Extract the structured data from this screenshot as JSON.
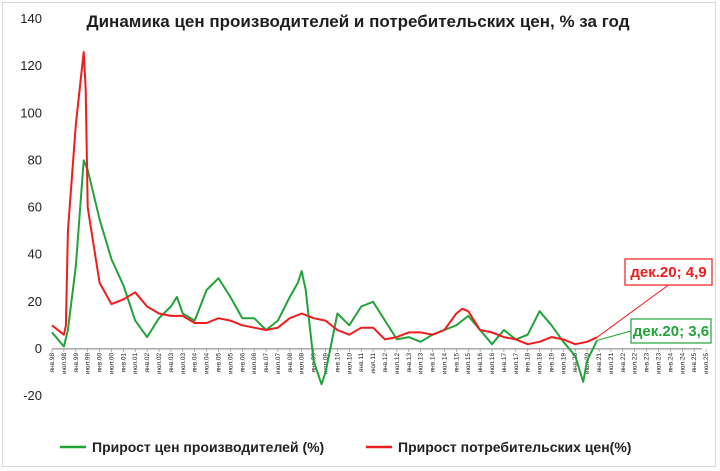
{
  "chart_data": {
    "type": "line",
    "title": "Динамика цен производителей и потребительских цен, % за год",
    "xlabel": "",
    "ylabel": "",
    "ylim": [
      -20,
      140
    ],
    "yticks": [
      -20,
      0,
      20,
      40,
      60,
      80,
      100,
      120,
      140
    ],
    "grid": false,
    "legend_position": "bottom",
    "x_tick_labels": [
      "янв.98",
      "июл.98",
      "янв.99",
      "июл.99",
      "янв.00",
      "июл.00",
      "янв.01",
      "июл.01",
      "янв.02",
      "июл.02",
      "янв.03",
      "июл.03",
      "янв.04",
      "июл.04",
      "янв.05",
      "июл.05",
      "янв.06",
      "июл.06",
      "янв.07",
      "июл.07",
      "янв.08",
      "июл.08",
      "янв.09",
      "июл.09",
      "янв.10",
      "июл.10",
      "янв.11",
      "июл.11",
      "янв.12",
      "июл.12",
      "янв.13",
      "июл.13",
      "янв.14",
      "июл.14",
      "янв.15",
      "июл.15",
      "янв.16",
      "июл.16",
      "янв.17",
      "июл.17",
      "янв.18",
      "июл.18",
      "янв.19",
      "июл.19",
      "янв.20",
      "июл.20",
      "янв.21",
      "июл.21",
      "янв.22",
      "июл.22",
      "янв.23",
      "июл.23",
      "янв.24",
      "июл.24",
      "янв.25",
      "июл.25"
    ],
    "series": [
      {
        "name": "Прирост цен производителей (%)",
        "color": "#22a33a",
        "points": [
          [
            "янв.98",
            7
          ],
          [
            "июл.98",
            1
          ],
          [
            "сен.98",
            8
          ],
          [
            "янв.99",
            35
          ],
          [
            "май.99",
            80
          ],
          [
            "июл.99",
            76
          ],
          [
            "янв.00",
            55
          ],
          [
            "июл.00",
            38
          ],
          [
            "янв.01",
            27
          ],
          [
            "июл.01",
            12
          ],
          [
            "янв.02",
            5
          ],
          [
            "июл.02",
            13
          ],
          [
            "янв.03",
            18
          ],
          [
            "апр.03",
            22
          ],
          [
            "июл.03",
            15
          ],
          [
            "янв.04",
            12
          ],
          [
            "июл.04",
            25
          ],
          [
            "янв.05",
            30
          ],
          [
            "июл.05",
            22
          ],
          [
            "янв.06",
            13
          ],
          [
            "июл.06",
            13
          ],
          [
            "янв.07",
            8
          ],
          [
            "июл.07",
            12
          ],
          [
            "янв.08",
            22
          ],
          [
            "май.08",
            28
          ],
          [
            "июл.08",
            33
          ],
          [
            "сен.08",
            25
          ],
          [
            "янв.09",
            -5
          ],
          [
            "май.09",
            -15
          ],
          [
            "июл.09",
            -10
          ],
          [
            "янв.10",
            15
          ],
          [
            "июл.10",
            10
          ],
          [
            "янв.11",
            18
          ],
          [
            "июл.11",
            20
          ],
          [
            "янв.12",
            12
          ],
          [
            "июл.12",
            4
          ],
          [
            "янв.13",
            5
          ],
          [
            "июл.13",
            3
          ],
          [
            "янв.14",
            6
          ],
          [
            "июл.14",
            8
          ],
          [
            "янв.15",
            10
          ],
          [
            "июл.15",
            14
          ],
          [
            "янв.16",
            8
          ],
          [
            "июл.16",
            2
          ],
          [
            "янв.17",
            8
          ],
          [
            "июл.17",
            4
          ],
          [
            "янв.18",
            6
          ],
          [
            "июл.18",
            16
          ],
          [
            "янв.19",
            10
          ],
          [
            "июл.19",
            3
          ],
          [
            "янв.20",
            -3
          ],
          [
            "май.20",
            -14
          ],
          [
            "июл.20",
            -5
          ],
          [
            "дек.20",
            3.6
          ]
        ]
      },
      {
        "name": "Прирост потребительских цен(%)",
        "color": "#ee1c1c",
        "points": [
          [
            "янв.98",
            10
          ],
          [
            "июл.98",
            6
          ],
          [
            "авг.98",
            10
          ],
          [
            "сен.98",
            50
          ],
          [
            "янв.99",
            95
          ],
          [
            "май.99",
            126
          ],
          [
            "июн.99",
            110
          ],
          [
            "июл.99",
            60
          ],
          [
            "янв.00",
            28
          ],
          [
            "июл.00",
            19
          ],
          [
            "янв.01",
            21
          ],
          [
            "июл.01",
            24
          ],
          [
            "янв.02",
            18
          ],
          [
            "июл.02",
            15
          ],
          [
            "янв.03",
            14
          ],
          [
            "июл.03",
            14
          ],
          [
            "янв.04",
            11
          ],
          [
            "июл.04",
            11
          ],
          [
            "янв.05",
            13
          ],
          [
            "июл.05",
            12
          ],
          [
            "янв.06",
            10
          ],
          [
            "июл.06",
            9
          ],
          [
            "янв.07",
            8
          ],
          [
            "июл.07",
            9
          ],
          [
            "янв.08",
            13
          ],
          [
            "июл.08",
            15
          ],
          [
            "янв.09",
            13
          ],
          [
            "июл.09",
            12
          ],
          [
            "янв.10",
            8
          ],
          [
            "июл.10",
            6
          ],
          [
            "янв.11",
            9
          ],
          [
            "июл.11",
            9
          ],
          [
            "янв.12",
            4
          ],
          [
            "июл.12",
            5
          ],
          [
            "янв.13",
            7
          ],
          [
            "июл.13",
            7
          ],
          [
            "янв.14",
            6
          ],
          [
            "июл.14",
            8
          ],
          [
            "янв.15",
            15
          ],
          [
            "апр.15",
            17
          ],
          [
            "июл.15",
            16
          ],
          [
            "янв.16",
            8
          ],
          [
            "июл.16",
            7
          ],
          [
            "янв.17",
            5
          ],
          [
            "июл.17",
            4
          ],
          [
            "янв.18",
            2
          ],
          [
            "июл.18",
            3
          ],
          [
            "янв.19",
            5
          ],
          [
            "июл.19",
            4
          ],
          [
            "янв.20",
            2
          ],
          [
            "июл.20",
            3
          ],
          [
            "дек.20",
            4.9
          ]
        ]
      }
    ],
    "annotations": [
      {
        "label": "дек.20; 4,9",
        "x": "дек.20",
        "y": 4.9,
        "color": "#ee1c1c"
      },
      {
        "label": "дек.20; 3,6",
        "x": "дек.20",
        "y": 3.6,
        "color": "#22a33a"
      }
    ]
  }
}
